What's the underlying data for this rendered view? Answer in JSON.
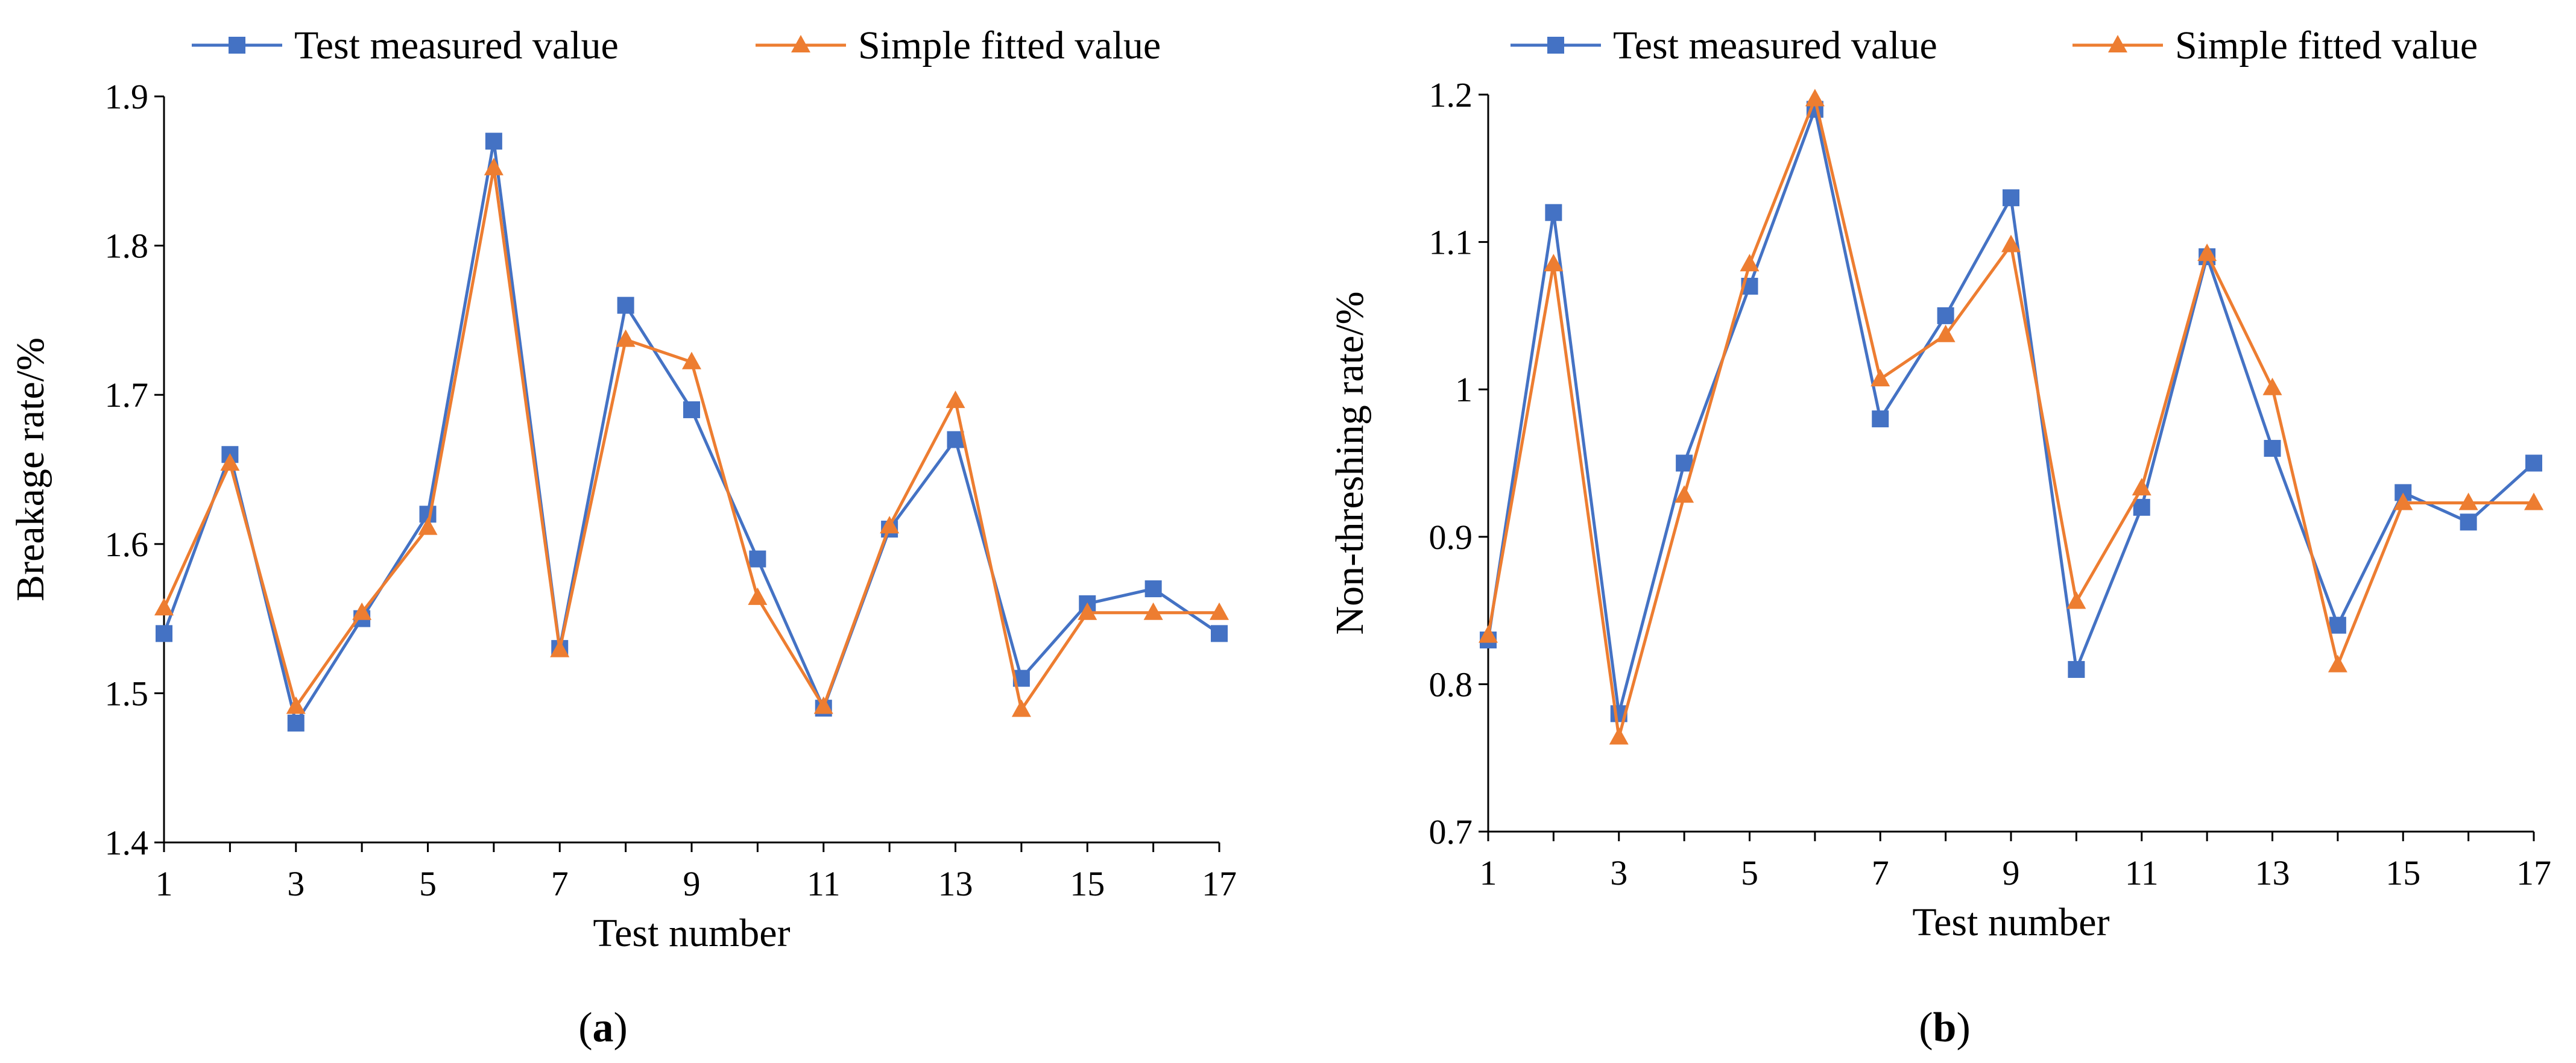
{
  "chart_data": [
    {
      "type": "line",
      "panel": "a",
      "caption_open": "(",
      "caption_letter": "a",
      "caption_close": ")",
      "title": "",
      "xlabel": "Test number",
      "ylabel": "Breakage  rate/%",
      "ylim": [
        1.4,
        1.9
      ],
      "yticks": [
        "1.4",
        "1.5",
        "1.6",
        "1.7",
        "1.8",
        "1.9"
      ],
      "xlim": [
        1,
        17
      ],
      "xticks": [
        "1",
        "3",
        "5",
        "7",
        "9",
        "11",
        "13",
        "15",
        "17"
      ],
      "x": [
        1,
        2,
        3,
        4,
        5,
        6,
        7,
        8,
        9,
        10,
        11,
        12,
        13,
        14,
        15,
        16,
        17
      ],
      "legend_position": "top",
      "series": [
        {
          "name": "Test measured value",
          "color": "#4472C4",
          "marker": "square",
          "values": [
            1.54,
            1.66,
            1.48,
            1.55,
            1.62,
            1.87,
            1.53,
            1.76,
            1.69,
            1.59,
            1.49,
            1.61,
            1.67,
            1.51,
            1.56,
            1.57,
            1.54
          ]
        },
        {
          "name": "Simple fitted value",
          "color": "#ED7D31",
          "marker": "triangle",
          "values": [
            1.557,
            1.654,
            1.491,
            1.554,
            1.611,
            1.852,
            1.529,
            1.737,
            1.722,
            1.564,
            1.491,
            1.612,
            1.696,
            1.489,
            1.554,
            1.554,
            1.554
          ]
        }
      ]
    },
    {
      "type": "line",
      "panel": "b",
      "caption_open": "(",
      "caption_letter": "b",
      "caption_close": ")",
      "title": "",
      "xlabel": "Test number",
      "ylabel": "Non-threshing  rate/%",
      "ylim": [
        0.7,
        1.2
      ],
      "yticks": [
        "0.7",
        "0.8",
        "0.9",
        "1",
        "1.1",
        "1.2"
      ],
      "xlim": [
        1,
        17
      ],
      "xticks": [
        "1",
        "3",
        "5",
        "7",
        "9",
        "11",
        "13",
        "15",
        "17"
      ],
      "x": [
        1,
        2,
        3,
        4,
        5,
        6,
        7,
        8,
        9,
        10,
        11,
        12,
        13,
        14,
        15,
        16,
        17
      ],
      "legend_position": "top",
      "series": [
        {
          "name": "Test measured value",
          "color": "#4472C4",
          "marker": "square",
          "values": [
            0.83,
            1.12,
            0.78,
            0.95,
            1.07,
            1.19,
            0.98,
            1.05,
            1.13,
            0.81,
            0.92,
            1.09,
            0.96,
            0.84,
            0.93,
            0.91,
            0.95
          ]
        },
        {
          "name": "Simple fitted value",
          "color": "#ED7D31",
          "marker": "triangle",
          "values": [
            0.833,
            1.085,
            0.764,
            0.928,
            1.085,
            1.197,
            1.007,
            1.037,
            1.098,
            0.856,
            0.933,
            1.092,
            1.001,
            0.813,
            0.923,
            0.923,
            0.923
          ]
        }
      ]
    }
  ]
}
